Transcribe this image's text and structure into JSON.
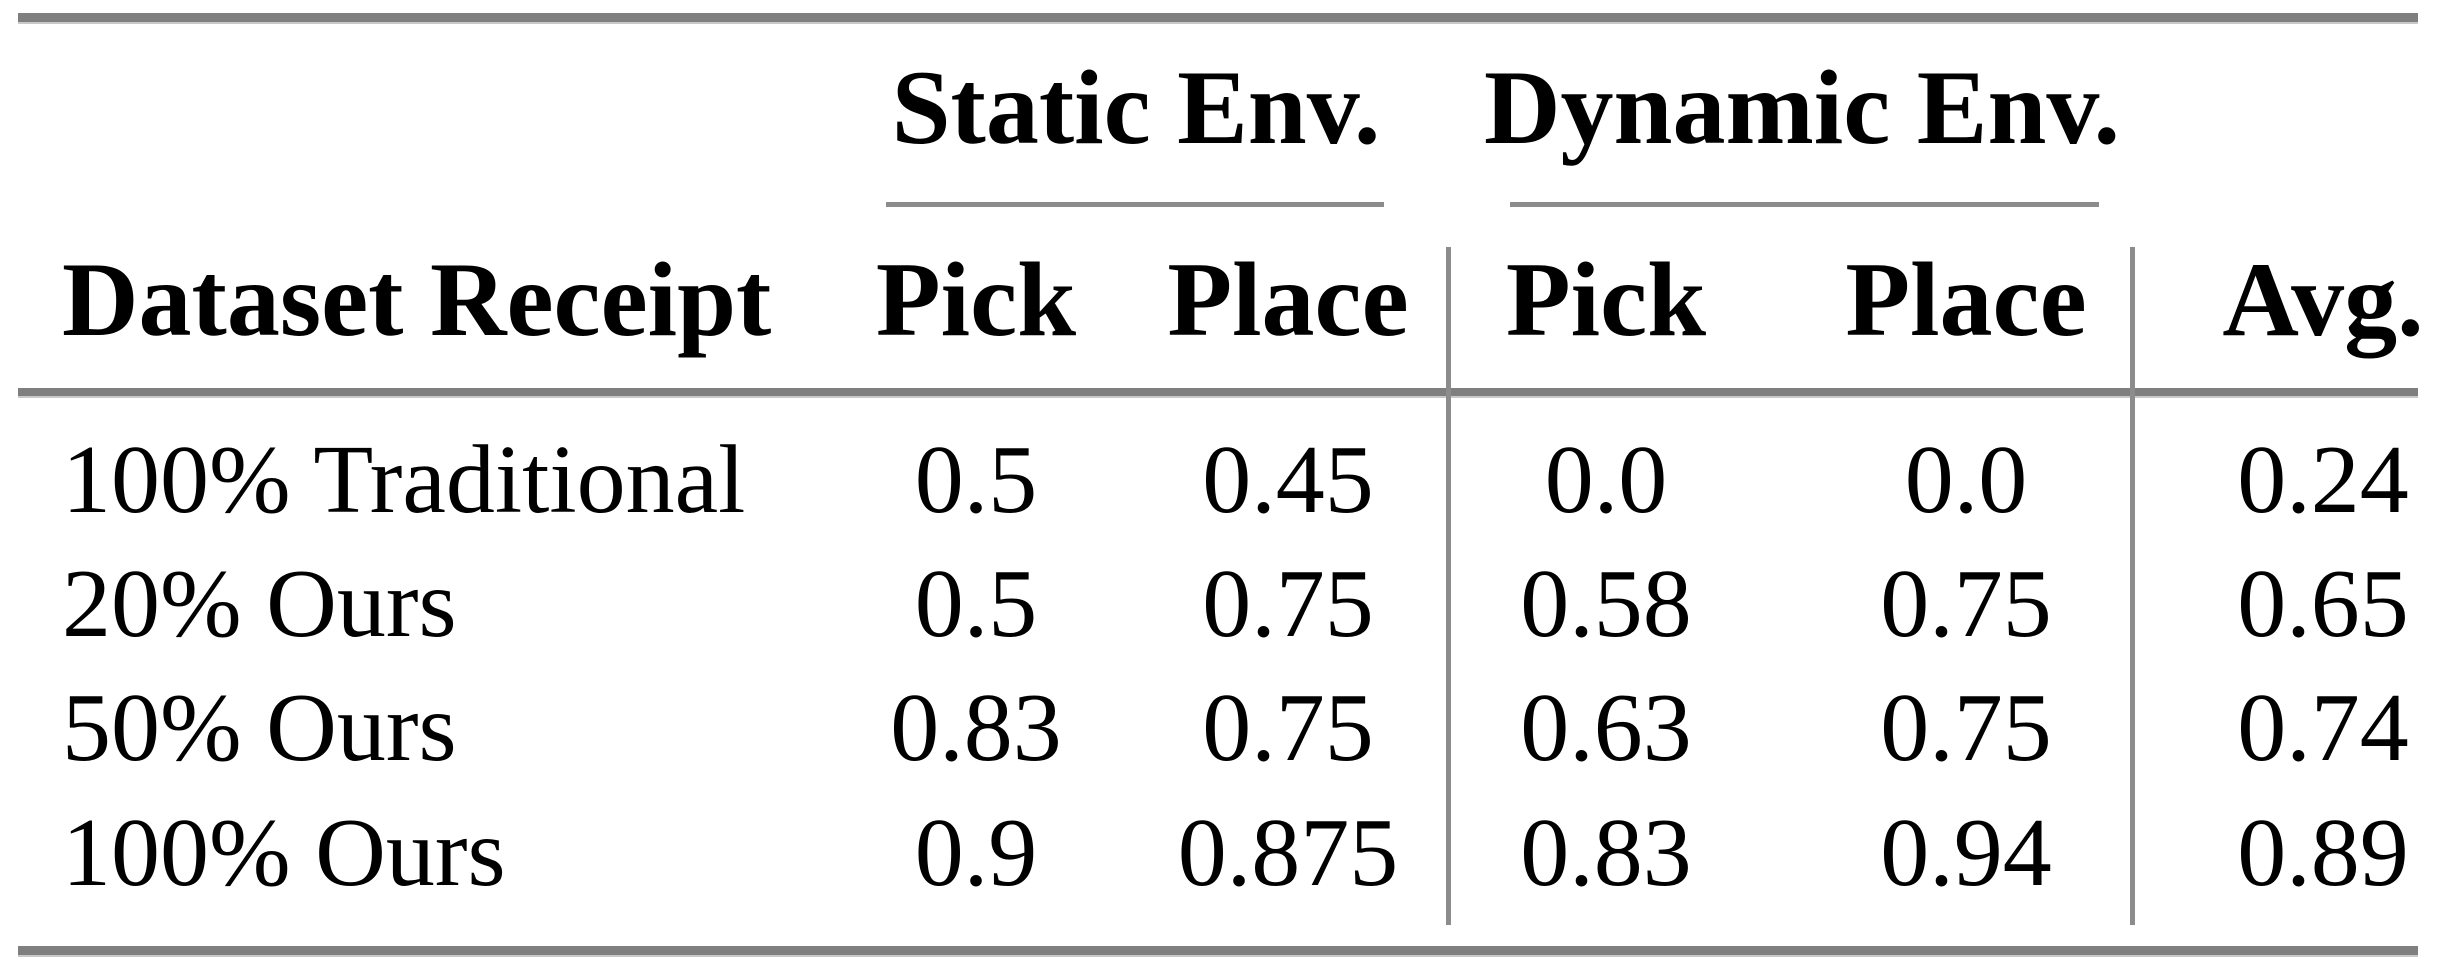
{
  "table": {
    "column_groups": {
      "static": "Static Env.",
      "dynamic": "Dynamic Env."
    },
    "headers": {
      "dataset": "Dataset Receipt",
      "static_pick": "Pick",
      "static_place": "Place",
      "dynamic_pick": "Pick",
      "dynamic_place": "Place",
      "avg": "Avg."
    },
    "rows": [
      {
        "label": "100% Traditional",
        "static_pick": "0.5",
        "static_place": "0.45",
        "dynamic_pick": "0.0",
        "dynamic_place": "0.0",
        "avg": "0.24"
      },
      {
        "label": "20% Ours",
        "static_pick": "0.5",
        "static_place": "0.75",
        "dynamic_pick": "0.58",
        "dynamic_place": "0.75",
        "avg": "0.65"
      },
      {
        "label": "50% Ours",
        "static_pick": "0.83",
        "static_place": "0.75",
        "dynamic_pick": "0.63",
        "dynamic_place": "0.75",
        "avg": "0.74"
      },
      {
        "label": "100% Ours",
        "static_pick": "0.9",
        "static_place": "0.875",
        "dynamic_pick": "0.83",
        "dynamic_place": "0.94",
        "avg": "0.89"
      }
    ]
  },
  "colors": {
    "rule_gray": "#7f7f7f",
    "divider_gray": "#8c8c8c",
    "text": "#000000",
    "background": "#ffffff"
  }
}
